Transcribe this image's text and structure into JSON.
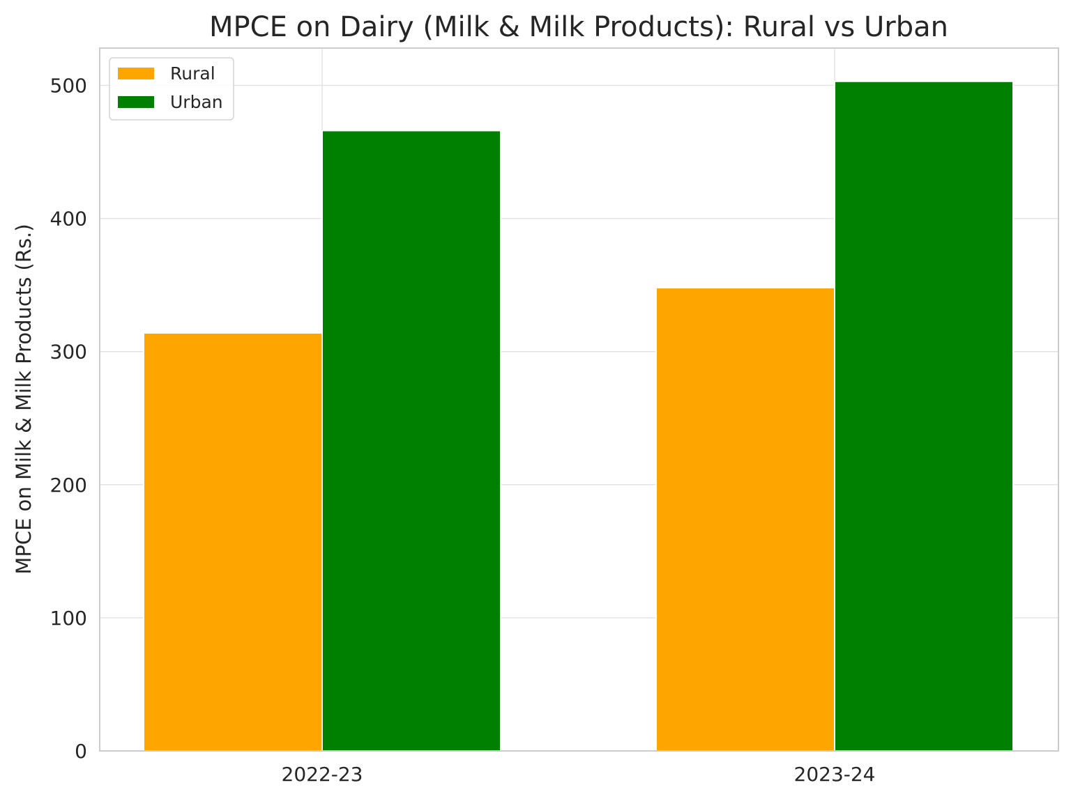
{
  "chart_data": {
    "type": "bar",
    "title": "MPCE on Dairy (Milk & Milk Products): Rural vs Urban",
    "xlabel": "",
    "ylabel": "MPCE on Milk & Milk Products (Rs.)",
    "categories": [
      "2022-23",
      "2023-24"
    ],
    "series": [
      {
        "name": "Rural",
        "values": [
          314,
          348
        ],
        "color": "#ffa500"
      },
      {
        "name": "Urban",
        "values": [
          466,
          503
        ],
        "color": "#008000"
      }
    ],
    "ylim": [
      0,
      528
    ],
    "yticks": [
      0,
      100,
      200,
      300,
      400,
      500
    ],
    "grid": true,
    "legend_position": "top-left"
  }
}
